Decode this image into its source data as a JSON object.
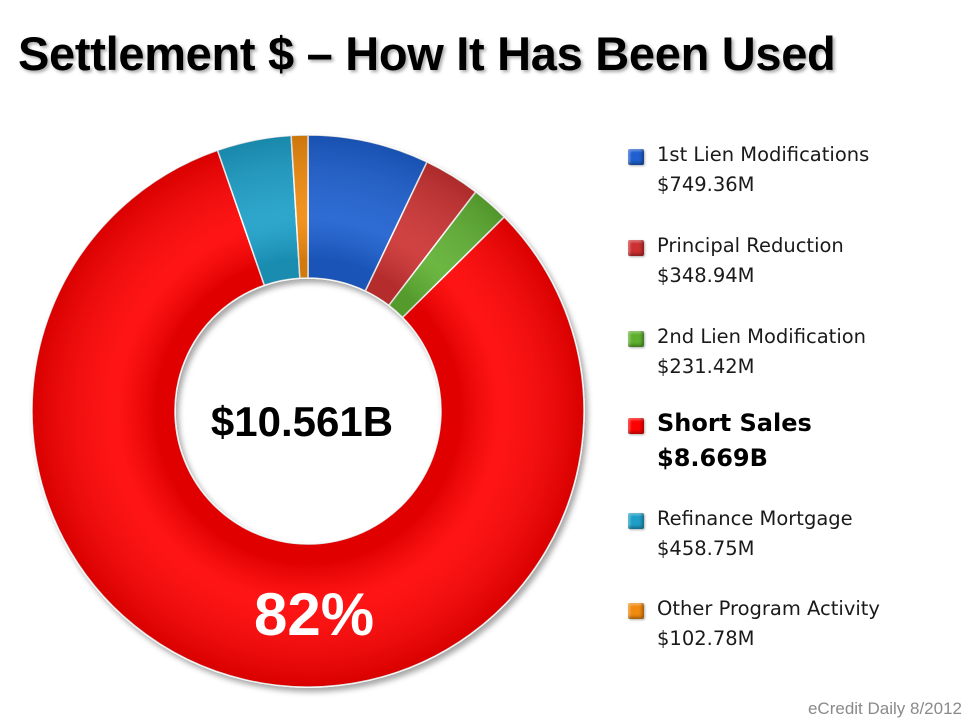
{
  "title": "Settlement $ – How It Has Been Used",
  "footer": "eCredit Daily 8/2012",
  "chart_data": {
    "type": "pie",
    "center_label": "$10.561B",
    "big_label": "82%",
    "slices": [
      {
        "name": "1st Lien Modifications",
        "amount": "$749.36M",
        "value": 749.36,
        "color": "#1f5fcf"
      },
      {
        "name": "Principal Reduction",
        "amount": "$348.94M",
        "value": 348.94,
        "color": "#cc3030"
      },
      {
        "name": "2nd Lien Modification",
        "amount": "$231.42M",
        "value": 231.42,
        "color": "#5fb030"
      },
      {
        "name": "Short Sales",
        "amount": "$8.669B",
        "value": 8669,
        "color": "#ff0000",
        "highlight": true
      },
      {
        "name": "Refinance Mortgage",
        "amount": "$458.75M",
        "value": 458.75,
        "color": "#1f9fc8"
      },
      {
        "name": "Other Program Activity",
        "amount": "$102.78M",
        "value": 102.78,
        "color": "#f08a10"
      }
    ]
  }
}
